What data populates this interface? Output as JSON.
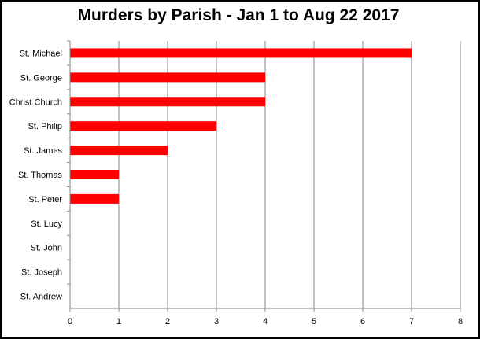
{
  "chart_data": {
    "type": "bar",
    "orientation": "horizontal",
    "title": "Murders by Parish - Jan 1 to Aug 22 2017",
    "categories": [
      "St. Michael",
      "St. George",
      "Christ Church",
      "St. Philip",
      "St. James",
      "St. Thomas",
      "St. Peter",
      "St. Lucy",
      "St. John",
      "St. Joseph",
      "St. Andrew"
    ],
    "values": [
      7,
      4,
      4,
      3,
      2,
      1,
      1,
      0,
      0,
      0,
      0
    ],
    "xlim": [
      0,
      8
    ],
    "xticks": [
      "0",
      "1",
      "2",
      "3",
      "4",
      "5",
      "6",
      "7",
      "8"
    ],
    "xlabel": "",
    "ylabel": "",
    "grid": "vertical",
    "legend": "none",
    "bar_color": "#ff0000"
  }
}
